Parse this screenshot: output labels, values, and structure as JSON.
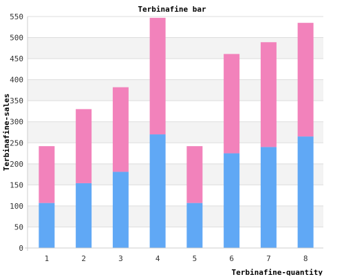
{
  "chart_data": {
    "type": "bar",
    "stacked": true,
    "title": "Terbinafine bar",
    "xlabel": "Terbinafine-quantity",
    "ylabel": "Terbinafine-sales",
    "categories": [
      "1",
      "2",
      "3",
      "4",
      "5",
      "6",
      "7",
      "8"
    ],
    "series": [
      {
        "values": [
          107,
          154,
          181,
          270,
          107,
          225,
          240,
          265
        ]
      },
      {
        "values": [
          135,
          176,
          201,
          277,
          135,
          236,
          249,
          270
        ]
      }
    ],
    "ylim": [
      0,
      550
    ],
    "yticks": [
      "0",
      "50",
      "100",
      "150",
      "200",
      "250",
      "300",
      "350",
      "400",
      "450",
      "500",
      "550"
    ],
    "grid": true,
    "legend": "none",
    "colors": {
      "series": [
        "#60a8f5",
        "#f282bb"
      ],
      "band": "#f3f3f3",
      "gridline": "#dddddd",
      "axis": "#cccccc",
      "text": "#333333"
    }
  }
}
